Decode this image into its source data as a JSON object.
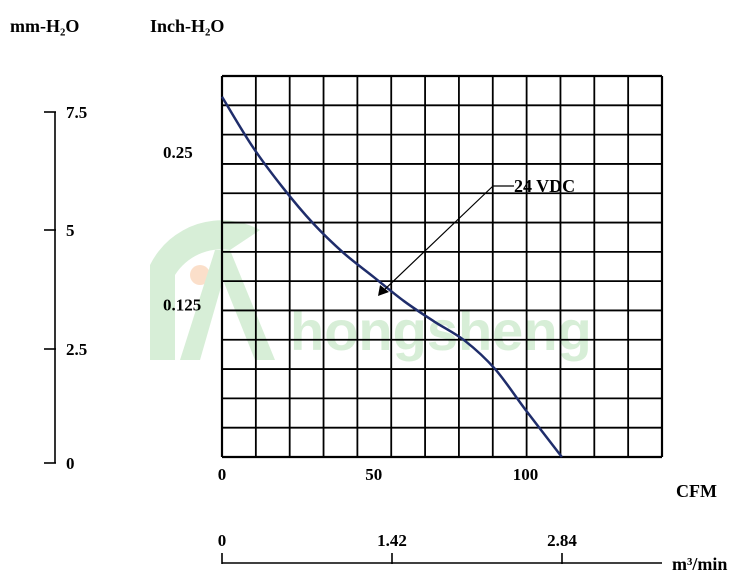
{
  "chart_data": {
    "type": "line",
    "series": [
      {
        "name": "24 VDC",
        "color": "#1f2d6b",
        "x": [
          0,
          10,
          20,
          30,
          40,
          50,
          60,
          70,
          80,
          90,
          100,
          112
        ],
        "y": [
          0.2955,
          0.2548,
          0.2211,
          0.1917,
          0.1675,
          0.1476,
          0.1278,
          0.111,
          0.0954,
          0.0721,
          0.0388,
          0
        ]
      }
    ],
    "axes": {
      "cfm": {
        "label": "CFM",
        "ticks": [
          "0",
          "50",
          "100"
        ],
        "range": [
          0,
          145
        ]
      },
      "m3min": {
        "label": "m³/min",
        "ticks": [
          "0",
          "1.42",
          "2.84"
        ]
      },
      "inch_h2o": {
        "label": "Inch-H₂O",
        "ticks": [
          "0.25",
          "0.125"
        ],
        "range": [
          0,
          0.3125
        ]
      },
      "mm_h2o": {
        "label": "mm-H₂O",
        "ticks": [
          "7.5",
          "5",
          "2.5",
          "0"
        ]
      }
    },
    "annotation": "24 VDC",
    "grid": true
  }
}
